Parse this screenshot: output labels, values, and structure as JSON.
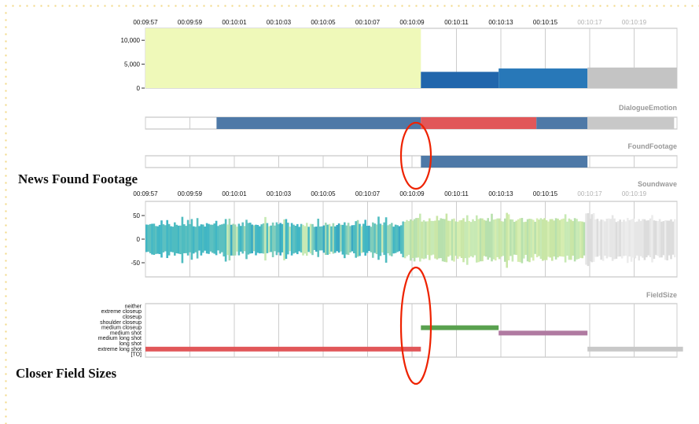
{
  "time_ticks": [
    "00:09:57",
    "00:09:59",
    "00:10:01",
    "00:10:03",
    "00:10:05",
    "00:10:07",
    "00:10:09",
    "00:10:11",
    "00:10:13",
    "00:10:15",
    "00:10:17",
    "00:10:19"
  ],
  "time_ticks_dim_from": 10,
  "top_chart": {
    "y_ticks": [
      "10,000",
      "5,000",
      "0"
    ],
    "ymax": 12500,
    "bars": [
      {
        "start": 0,
        "end": 6.2,
        "value": 12500,
        "color": "#eff9b9"
      },
      {
        "start": 6.2,
        "end": 7.95,
        "value": 3400,
        "color": "#2166ac"
      },
      {
        "start": 7.95,
        "end": 9.95,
        "value": 4100,
        "color": "#2878b8"
      },
      {
        "start": 9.95,
        "end": 12.1,
        "value": 4300,
        "color": "#c4c4c4"
      }
    ]
  },
  "panels": {
    "dialogue_emotion": "DialogueEmotion",
    "found_footage": "FoundFootage",
    "soundwave": "Soundwave",
    "field_size": "FieldSize"
  },
  "dialogue_emotion_segments": [
    {
      "start": 1.6,
      "end": 6.2,
      "color": "#4e79a7"
    },
    {
      "start": 6.2,
      "end": 8.8,
      "color": "#e15759"
    },
    {
      "start": 8.8,
      "end": 9.95,
      "color": "#4e79a7"
    },
    {
      "start": 9.95,
      "end": 11.9,
      "color": "#c8c8c8"
    }
  ],
  "found_footage_segments": [
    {
      "start": 6.2,
      "end": 9.95,
      "color": "#4e79a7"
    }
  ],
  "soundwave": {
    "y_ticks": [
      "50",
      "0",
      "-50"
    ],
    "ymax": 80
  },
  "field_size": {
    "categories": [
      "neither",
      "extreme closeup",
      "closeup",
      "shoulder closeup",
      "medium closeup",
      "medium shot",
      "medium long shot",
      "long shot",
      "extreme long shot",
      "[TO]"
    ],
    "segments": [
      {
        "start": 0,
        "end": 6.2,
        "category": "extreme long shot",
        "color": "#e15759"
      },
      {
        "start": 6.2,
        "end": 7.95,
        "category": "medium closeup",
        "color": "#59a14f"
      },
      {
        "start": 7.95,
        "end": 9.95,
        "category": "medium shot",
        "color": "#b07aa1"
      },
      {
        "start": 9.95,
        "end": 12.1,
        "category": "extreme long shot",
        "color": "#c8c8c8"
      }
    ]
  },
  "captions": {
    "found_footage": "News Found Footage",
    "field_sizes": "Closer Field Sizes"
  },
  "colors": {
    "highlight_ellipse": "#ee2200",
    "grid": "#cccccc"
  }
}
